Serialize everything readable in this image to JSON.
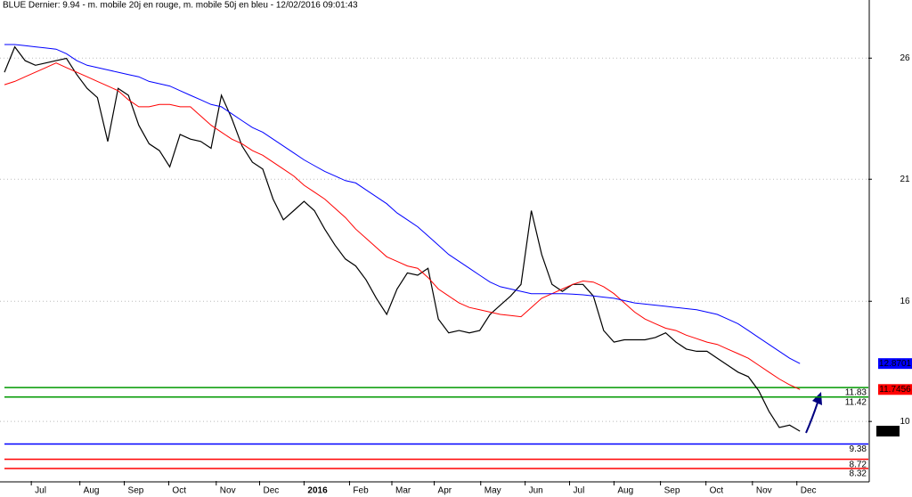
{
  "chart_data": {
    "type": "line",
    "title": "BLUE Dernier: 9.94 - m. mobile 20j en rouge, m. mobile 50j en bleu - 12/02/2016 09:01:43",
    "x": [
      0,
      1,
      2,
      3,
      4,
      5,
      6,
      7,
      8,
      9,
      10,
      11,
      12,
      13,
      14,
      15,
      16,
      17,
      18,
      19,
      20,
      21,
      22,
      23,
      24,
      25,
      26,
      27,
      28,
      29,
      30,
      31,
      32,
      33,
      34,
      35,
      36,
      37,
      38,
      39,
      40,
      41,
      42,
      43,
      44,
      45,
      46,
      47,
      48,
      49,
      50,
      51,
      52,
      53,
      54,
      55,
      56,
      57,
      58,
      59,
      60,
      61,
      62,
      63,
      64,
      65,
      66,
      67,
      68,
      69,
      70,
      71,
      72,
      73,
      74,
      75,
      76,
      77
    ],
    "series": [
      {
        "color": "#000000",
        "values": [
          25.5,
          26.6,
          26.0,
          25.8,
          25.9,
          26.0,
          26.1,
          25.4,
          24.8,
          24.4,
          22.5,
          24.8,
          24.5,
          23.2,
          22.4,
          22.1,
          21.4,
          22.8,
          22.6,
          22.5,
          22.2,
          24.5,
          23.5,
          22.3,
          21.6,
          21.3,
          20.0,
          19.1,
          19.5,
          19.9,
          19.5,
          18.7,
          18.0,
          17.4,
          17.1,
          16.5,
          15.7,
          15.0,
          16.1,
          16.8,
          16.7,
          17.0,
          14.8,
          14.2,
          14.3,
          14.2,
          14.3,
          15.0,
          15.4,
          15.8,
          16.3,
          19.5,
          17.6,
          16.3,
          16.0,
          16.3,
          16.3,
          15.8,
          14.3,
          13.8,
          13.9,
          13.9,
          13.9,
          14.0,
          14.2,
          13.8,
          13.5,
          13.4,
          13.4,
          13.1,
          12.8,
          12.5,
          12.3,
          11.7,
          10.8,
          10.1,
          10.2,
          9.94
        ]
      },
      {
        "color": "#ff0000",
        "values": [
          24.96,
          25.1,
          25.3,
          25.5,
          25.7,
          25.9,
          25.7,
          25.5,
          25.3,
          25.1,
          24.9,
          24.7,
          24.3,
          24.0,
          24.0,
          24.1,
          24.1,
          24.0,
          24.0,
          23.6,
          23.2,
          22.9,
          22.6,
          22.4,
          22.1,
          21.9,
          21.6,
          21.3,
          21.0,
          20.6,
          20.3,
          20.0,
          19.6,
          19.2,
          18.7,
          18.3,
          17.9,
          17.5,
          17.3,
          17.1,
          17.0,
          16.6,
          16.1,
          15.8,
          15.5,
          15.3,
          15.2,
          15.1,
          15.0,
          14.95,
          14.9,
          15.3,
          15.7,
          15.9,
          16.1,
          16.3,
          16.45,
          16.4,
          16.2,
          15.9,
          15.5,
          15.1,
          14.8,
          14.6,
          14.4,
          14.3,
          14.1,
          13.95,
          13.8,
          13.7,
          13.5,
          13.3,
          13.1,
          12.8,
          12.5,
          12.2,
          11.95,
          11.7456
        ]
      },
      {
        "color": "#0000ff",
        "values": [
          26.7,
          26.7,
          26.65,
          26.6,
          26.55,
          26.5,
          26.3,
          26.0,
          25.8,
          25.7,
          25.6,
          25.5,
          25.4,
          25.3,
          25.1,
          25.0,
          24.9,
          24.7,
          24.5,
          24.3,
          24.1,
          24.0,
          23.7,
          23.4,
          23.1,
          22.9,
          22.6,
          22.3,
          22.0,
          21.7,
          21.45,
          21.2,
          21.0,
          20.8,
          20.7,
          20.4,
          20.1,
          19.8,
          19.4,
          19.1,
          18.8,
          18.4,
          18.0,
          17.6,
          17.3,
          17.0,
          16.7,
          16.4,
          16.2,
          16.1,
          16.0,
          15.9,
          15.9,
          15.9,
          15.9,
          15.88,
          15.85,
          15.8,
          15.75,
          15.7,
          15.6,
          15.5,
          15.45,
          15.4,
          15.35,
          15.3,
          15.25,
          15.2,
          15.1,
          15.0,
          14.8,
          14.6,
          14.3,
          14.0,
          13.7,
          13.4,
          13.1,
          12.8701
        ]
      }
    ],
    "hlines": [
      {
        "value": 11.83,
        "color": "#009900"
      },
      {
        "value": 11.42,
        "color": "#009900"
      },
      {
        "value": 9.38,
        "color": "#0000ff"
      },
      {
        "value": 8.72,
        "color": "#ff0000"
      },
      {
        "value": 8.32,
        "color": "#ff0000"
      }
    ],
    "xlim": [
      -0.43,
      83.62
    ],
    "ylim": [
      7.78,
      28.63
    ],
    "xticks": [
      {
        "value": 2.6,
        "label": "Jul"
      },
      {
        "value": 7.3,
        "label": "Aug"
      },
      {
        "value": 11.6,
        "label": "Sep"
      },
      {
        "value": 15.9,
        "label": "Oct"
      },
      {
        "value": 20.5,
        "label": "Nov"
      },
      {
        "value": 24.7,
        "label": "Dec"
      },
      {
        "value": 29.0,
        "label": "2016"
      },
      {
        "value": 33.4,
        "label": "Feb"
      },
      {
        "value": 37.5,
        "label": "Mar"
      },
      {
        "value": 41.6,
        "label": "Apr"
      },
      {
        "value": 46.1,
        "label": "May"
      },
      {
        "value": 50.4,
        "label": "Jun"
      },
      {
        "value": 54.7,
        "label": "Jul"
      },
      {
        "value": 59.0,
        "label": "Aug"
      },
      {
        "value": 63.5,
        "label": "Sep"
      },
      {
        "value": 67.9,
        "label": "Oct"
      },
      {
        "value": 72.4,
        "label": "Nov"
      },
      {
        "value": 76.7,
        "label": "Dec"
      }
    ],
    "yticks": [
      {
        "value": 10.36,
        "label": "10"
      },
      {
        "value": 15.57,
        "label": "16"
      },
      {
        "value": 20.86,
        "label": "21"
      },
      {
        "value": 26.11,
        "label": "26"
      }
    ],
    "grid": true
  }
}
